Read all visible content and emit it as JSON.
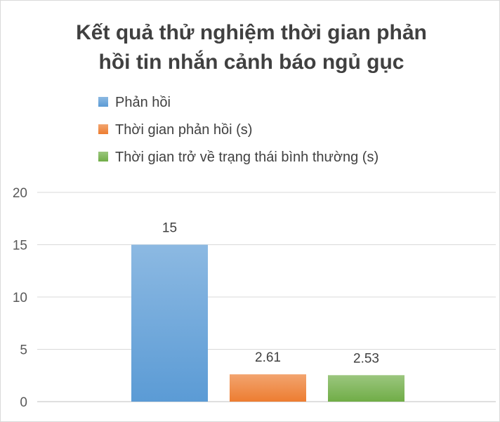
{
  "chart_data": {
    "type": "bar",
    "title_lines": [
      "Kết quả thử nghiệm thời gian phản",
      "hồi tin nhắn cảnh báo ngủ gục"
    ],
    "categories": [
      ""
    ],
    "series": [
      {
        "name": "Phản hồi",
        "values": [
          15
        ],
        "data_label": "15",
        "color": "#5b9bd5"
      },
      {
        "name": "Thời gian phản hồi (s)",
        "values": [
          2.61
        ],
        "data_label": "2.61",
        "color": "#ed7d31"
      },
      {
        "name": "Thời gian trở về trạng thái bình thường (s)",
        "values": [
          2.53
        ],
        "data_label": "2.53",
        "color": "#70ad47"
      }
    ],
    "ylim": [
      0,
      20
    ],
    "yticks": [
      0,
      5,
      10,
      15,
      20
    ],
    "ytick_labels": [
      "0",
      "5",
      "10",
      "15",
      "20"
    ],
    "grid": true,
    "legend_position": "top-left",
    "xlabel": "",
    "ylabel": ""
  }
}
